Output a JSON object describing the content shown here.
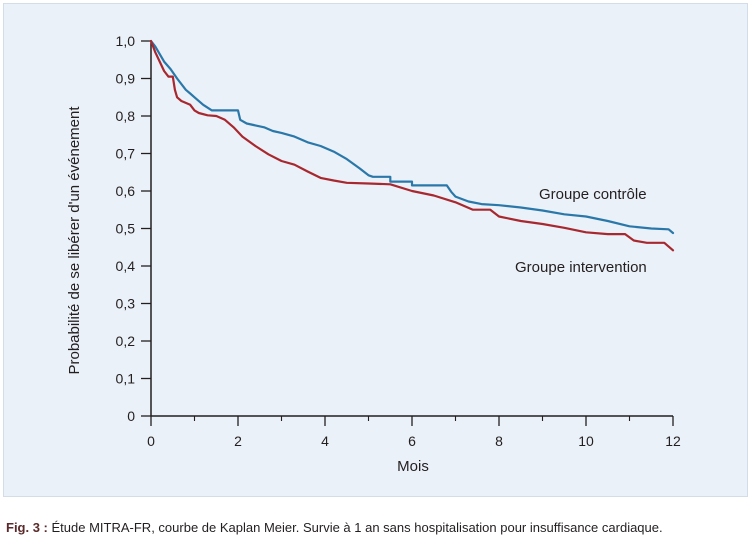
{
  "colors": {
    "background": "#ebf1f8",
    "controle": "#2a78aa",
    "intervention": "#a8282f",
    "axis": "#231f20"
  },
  "caption": {
    "label": "Fig. 3 :",
    "text": "Étude MITRA-FR, courbe de Kaplan Meier. Survie à 1 an sans hospitalisation pour insuffisance cardiaque."
  },
  "chart_data": {
    "type": "line",
    "xlabel": "Mois",
    "ylabel": "Probabilité de se libérer d'un événement",
    "xlim": [
      0,
      12
    ],
    "ylim": [
      0,
      1
    ],
    "x_ticks": [
      "0",
      "2",
      "4",
      "6",
      "8",
      "10",
      "12"
    ],
    "y_ticks": [
      "0",
      "0,1",
      "0,2",
      "0,3",
      "0,4",
      "0,5",
      "0,6",
      "0,7",
      "0,8",
      "0,9",
      "1,0"
    ],
    "grid": false,
    "series": [
      {
        "name": "Groupe contrôle",
        "color": "#2a78aa",
        "x": [
          0,
          0.1,
          0.2,
          0.3,
          0.45,
          0.6,
          0.8,
          0.9,
          1.0,
          1.2,
          1.4,
          1.55,
          1.8,
          2.0,
          2.05,
          2.2,
          2.4,
          2.6,
          2.8,
          3.0,
          3.3,
          3.6,
          3.9,
          4.2,
          4.5,
          4.8,
          5.0,
          5.1,
          5.5,
          5.5,
          6.0,
          6.0,
          6.8,
          6.9,
          7.0,
          7.3,
          7.6,
          8.0,
          8.5,
          9.0,
          9.5,
          10.0,
          10.5,
          11.0,
          11.5,
          11.9,
          12.0
        ],
        "values": [
          1.0,
          0.985,
          0.965,
          0.945,
          0.925,
          0.9,
          0.87,
          0.86,
          0.85,
          0.83,
          0.815,
          0.815,
          0.815,
          0.815,
          0.79,
          0.78,
          0.775,
          0.77,
          0.76,
          0.755,
          0.745,
          0.73,
          0.72,
          0.705,
          0.685,
          0.66,
          0.642,
          0.638,
          0.638,
          0.625,
          0.625,
          0.615,
          0.615,
          0.598,
          0.585,
          0.572,
          0.565,
          0.562,
          0.556,
          0.548,
          0.538,
          0.532,
          0.52,
          0.506,
          0.5,
          0.498,
          0.488
        ]
      },
      {
        "name": "Groupe intervention",
        "color": "#a8282f",
        "x": [
          0,
          0.1,
          0.2,
          0.3,
          0.4,
          0.5,
          0.55,
          0.6,
          0.7,
          0.9,
          1.0,
          1.1,
          1.3,
          1.5,
          1.7,
          1.9,
          2.1,
          2.4,
          2.7,
          3.0,
          3.3,
          3.6,
          3.9,
          4.2,
          4.5,
          5.0,
          5.5,
          6.0,
          6.5,
          7.0,
          7.4,
          7.8,
          8.0,
          8.5,
          9.0,
          9.5,
          10.0,
          10.5,
          10.9,
          11.1,
          11.4,
          11.8,
          12.0
        ],
        "values": [
          1.0,
          0.97,
          0.945,
          0.92,
          0.905,
          0.905,
          0.87,
          0.85,
          0.84,
          0.83,
          0.815,
          0.808,
          0.802,
          0.8,
          0.79,
          0.77,
          0.745,
          0.72,
          0.698,
          0.68,
          0.67,
          0.652,
          0.635,
          0.628,
          0.622,
          0.62,
          0.618,
          0.6,
          0.588,
          0.57,
          0.55,
          0.55,
          0.532,
          0.52,
          0.512,
          0.502,
          0.49,
          0.485,
          0.485,
          0.468,
          0.462,
          0.462,
          0.442
        ]
      }
    ]
  }
}
